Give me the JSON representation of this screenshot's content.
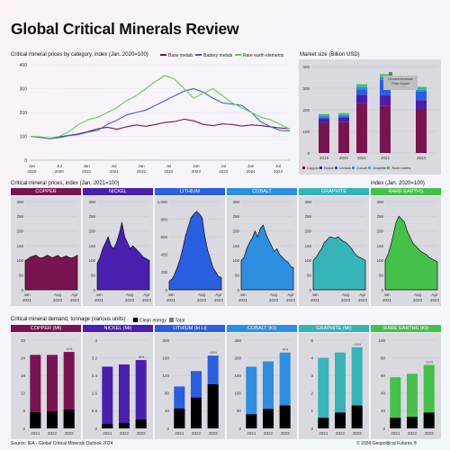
{
  "title": "Global Critical Minerals Review",
  "colors": {
    "base": "#7a1450",
    "battery": "#3b5ee8",
    "rare": "#5fcf4a",
    "clean": "#000000",
    "copper": "#7a1450",
    "nickel": "#4a1fb0",
    "lithium": "#2a5ee0",
    "cobalt": "#2e8ee0",
    "graphite": "#36b4b8",
    "rare_earths": "#45c04a"
  },
  "panel1": {
    "title": "Critical mineral prices by category, index (Jan. 2020=100)",
    "legend": [
      "Base metals",
      "Battery metals",
      "Rare earth elements"
    ]
  },
  "panel2": {
    "title": "Market size (Billion USD)",
    "annotation": "Demand increase\nPrice impact",
    "legend": [
      "Copper",
      "Nickel",
      "Lithium",
      "Cobalt",
      "Graphite",
      "Rare earths"
    ]
  },
  "panel3": {
    "title": "Critical mineral prices, index (Jan. 2021=100)",
    "note": "index (Jan. 2020=100)"
  },
  "panel4": {
    "title": "Critical mineral demand, tonnage (various units)",
    "legend": [
      "Clean energy",
      "Total"
    ]
  },
  "footer": {
    "source": "Source: IEA - Global Critical Minerals Outlook 2024",
    "copyright": "© 2024 Geopolitical Futures ®"
  },
  "chart_data": [
    {
      "type": "line",
      "title": "Critical mineral prices by category, index (Jan. 2020=100)",
      "ylim": [
        0,
        400
      ],
      "yticks": [
        0,
        100,
        200,
        300,
        400
      ],
      "xticks": [
        "Jan 2020",
        "Jul 2020",
        "Jan 2021",
        "Jul 2021",
        "Jan 2022",
        "Jul 2022",
        "Jan 2023",
        "Jul 2023",
        "Jan 2024",
        "Jul 2024"
      ],
      "x": [
        0,
        2,
        4,
        6,
        8,
        10,
        12,
        14,
        16,
        18,
        20,
        22,
        24,
        26,
        28,
        30,
        32,
        34,
        36,
        38,
        40,
        42,
        44,
        46,
        48,
        50,
        52,
        54
      ],
      "series": [
        {
          "name": "Base metals",
          "values": [
            100,
            96,
            92,
            98,
            104,
            110,
            120,
            132,
            138,
            130,
            140,
            148,
            142,
            150,
            158,
            162,
            172,
            165,
            150,
            145,
            152,
            150,
            143,
            148,
            145,
            140,
            135,
            132
          ]
        },
        {
          "name": "Battery metals",
          "values": [
            100,
            95,
            90,
            95,
            103,
            108,
            118,
            125,
            150,
            168,
            190,
            200,
            210,
            230,
            250,
            270,
            290,
            300,
            285,
            260,
            240,
            235,
            230,
            200,
            160,
            140,
            125,
            123
          ]
        },
        {
          "name": "Rare earth elements",
          "values": [
            100,
            98,
            92,
            100,
            120,
            150,
            170,
            180,
            200,
            220,
            250,
            270,
            300,
            330,
            355,
            340,
            300,
            260,
            280,
            300,
            270,
            240,
            220,
            200,
            180,
            170,
            150,
            130
          ]
        }
      ]
    },
    {
      "type": "bar",
      "title": "Market size (Billion USD)",
      "ylim": [
        0,
        400
      ],
      "yticks": [
        0,
        100,
        200,
        300,
        400
      ],
      "categories": [
        "2019",
        "2020",
        "2021",
        "2022",
        "2023"
      ],
      "series": [
        {
          "name": "Copper",
          "values": [
            140,
            145,
            230,
            218,
            200
          ]
        },
        {
          "name": "Nickel",
          "values": [
            20,
            20,
            40,
            50,
            45
          ]
        },
        {
          "name": "Lithium",
          "values": [
            5,
            5,
            25,
            70,
            40
          ]
        },
        {
          "name": "Cobalt",
          "values": [
            6,
            6,
            10,
            12,
            8
          ]
        },
        {
          "name": "Graphite",
          "values": [
            4,
            4,
            5,
            5,
            5
          ]
        },
        {
          "name": "Rare earths",
          "values": [
            5,
            5,
            8,
            10,
            8
          ]
        }
      ]
    },
    {
      "type": "area",
      "title": "COPPER",
      "ylim": [
        0,
        300
      ],
      "yticks": [
        0,
        50,
        100,
        150,
        200,
        250,
        300
      ],
      "xticks": [
        "Jan 2021",
        "Aug 2023",
        "Apr 2024"
      ],
      "values": [
        100,
        105,
        112,
        115,
        118,
        110,
        108,
        112,
        118,
        113,
        109,
        114,
        117,
        108,
        112,
        115,
        110,
        108,
        112,
        118
      ]
    },
    {
      "type": "area",
      "title": "NICKEL",
      "ylim": [
        0,
        300
      ],
      "yticks": [
        0,
        50,
        100,
        150,
        200,
        250,
        300
      ],
      "xticks": [
        "Jan 2021",
        "Aug 2023",
        "Apr 2024"
      ],
      "values": [
        90,
        110,
        140,
        160,
        180,
        150,
        140,
        160,
        190,
        230,
        180,
        160,
        140,
        150,
        140,
        130,
        120,
        110,
        105,
        100
      ]
    },
    {
      "type": "area",
      "title": "LITHIUM",
      "ylim": [
        0,
        1000
      ],
      "yticks": [
        0,
        200,
        400,
        600,
        800,
        1000
      ],
      "xticks": [
        "Jan 2021",
        "Aug 2023",
        "Apr 2024"
      ],
      "values": [
        100,
        120,
        180,
        260,
        350,
        480,
        620,
        720,
        820,
        860,
        890,
        860,
        820,
        600,
        450,
        350,
        250,
        200,
        150,
        140
      ]
    },
    {
      "type": "area",
      "title": "COBALT",
      "ylim": [
        0,
        300
      ],
      "yticks": [
        0,
        50,
        100,
        150,
        200,
        250,
        300
      ],
      "xticks": [
        "Jan 2021",
        "Aug 2023",
        "Apr 2024"
      ],
      "values": [
        100,
        110,
        140,
        160,
        175,
        200,
        180,
        210,
        220,
        190,
        170,
        150,
        130,
        140,
        120,
        110,
        100,
        95,
        80,
        75
      ]
    },
    {
      "type": "area",
      "title": "GRAPHITE",
      "ylim": [
        0,
        300
      ],
      "yticks": [
        0,
        50,
        100,
        150,
        200,
        250,
        300
      ],
      "xticks": [
        "Jan 2021",
        "Aug 2023",
        "Apr 2024"
      ],
      "values": [
        100,
        110,
        125,
        140,
        160,
        170,
        180,
        178,
        175,
        180,
        172,
        165,
        160,
        150,
        140,
        125,
        115,
        110,
        105,
        100
      ]
    },
    {
      "type": "area",
      "title": "RARE EARTHS",
      "ylim": [
        0,
        300
      ],
      "yticks": [
        0,
        50,
        100,
        150,
        200,
        250,
        300
      ],
      "xticks": [
        "Jan 2021",
        "Aug 2023",
        "Apr 2024"
      ],
      "values": [
        100,
        120,
        150,
        190,
        230,
        250,
        240,
        230,
        200,
        180,
        160,
        150,
        140,
        130,
        125,
        120,
        110,
        105,
        100,
        95
      ]
    },
    {
      "type": "bar",
      "title": "COPPER (Mt)",
      "ylim": [
        0,
        30
      ],
      "yticks": [
        0,
        6,
        12,
        18,
        24,
        30
      ],
      "categories": [
        "2021",
        "2022",
        "2023"
      ],
      "series": [
        {
          "name": "Total",
          "values": [
            25,
            25,
            26
          ]
        },
        {
          "name": "Clean energy",
          "values": [
            5.5,
            5.8,
            6.4
          ]
        }
      ],
      "labels": [
        "",
        "",
        "+2%"
      ],
      "inner_labels": [
        "",
        "",
        ""
      ]
    },
    {
      "type": "bar",
      "title": "NICKEL (Mt)",
      "ylim": [
        0,
        4
      ],
      "yticks": [
        0,
        0.8,
        1.6,
        2.4,
        3.2,
        4
      ],
      "categories": [
        "2021",
        "2022",
        "2023"
      ],
      "series": [
        {
          "name": "Total",
          "values": [
            2.8,
            2.9,
            3.1
          ]
        },
        {
          "name": "Clean energy",
          "values": [
            0.2,
            0.25,
            0.4
          ]
        }
      ],
      "labels": [
        "",
        "",
        "+8%"
      ],
      "inner_labels": [
        "",
        "",
        ""
      ]
    },
    {
      "type": "bar",
      "title": "LITHIUM (kt Li)",
      "ylim": [
        0,
        200
      ],
      "yticks": [
        0,
        40,
        80,
        120,
        160,
        200
      ],
      "categories": [
        "2021",
        "2022",
        "2023"
      ],
      "series": [
        {
          "name": "Total",
          "values": [
            95,
            130,
            165
          ]
        },
        {
          "name": "Clean energy",
          "values": [
            45,
            70,
            100
          ]
        }
      ],
      "labels": [
        "",
        "",
        "+30%"
      ],
      "inner_labels": [
        "",
        "",
        ""
      ]
    },
    {
      "type": "bar",
      "title": "COBALT (Kt)",
      "ylim": [
        0,
        250
      ],
      "yticks": [
        0,
        50,
        100,
        150,
        200,
        250
      ],
      "categories": [
        "2021",
        "2022",
        "2023"
      ],
      "series": [
        {
          "name": "Total",
          "values": [
            175,
            190,
            215
          ]
        },
        {
          "name": "Clean energy",
          "values": [
            40,
            55,
            65
          ]
        }
      ],
      "labels": [
        "",
        "",
        "+8%"
      ],
      "inner_labels": [
        "",
        "",
        ""
      ]
    },
    {
      "type": "bar",
      "title": "GRAPHITE (Mt)",
      "ylim": [
        0,
        5
      ],
      "yticks": [
        0,
        1,
        2,
        3,
        4,
        5
      ],
      "categories": [
        "2021",
        "2022",
        "2023"
      ],
      "series": [
        {
          "name": "Total",
          "values": [
            4,
            4.3,
            4.6
          ]
        },
        {
          "name": "Clean energy",
          "values": [
            0.6,
            0.9,
            1.3
          ]
        }
      ],
      "labels": [
        "",
        "",
        "+13%"
      ],
      "inner_labels": [
        "",
        "",
        ""
      ]
    },
    {
      "type": "bar",
      "title": "RARE EARTHS (Kt)",
      "ylim": [
        0,
        100
      ],
      "yticks": [
        0,
        20,
        40,
        60,
        80,
        100
      ],
      "categories": [
        "2021",
        "2022",
        "2023"
      ],
      "series": [
        {
          "name": "Total",
          "values": [
            58,
            62,
            72
          ]
        },
        {
          "name": "Clean energy",
          "values": [
            12,
            13,
            18
          ]
        }
      ],
      "labels": [
        "",
        "",
        "+11%"
      ],
      "inner_labels": [
        "",
        "",
        ""
      ]
    }
  ]
}
